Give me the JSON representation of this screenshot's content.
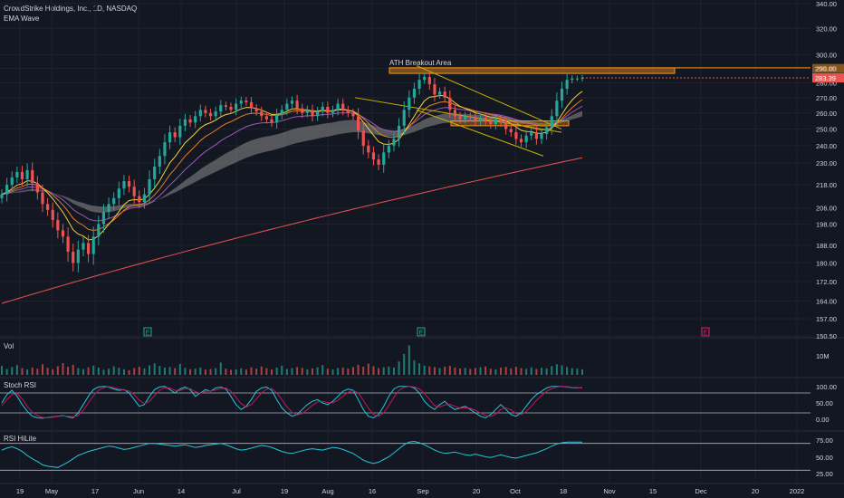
{
  "header": {
    "symbol_line": "CrowdStrike Holdings, Inc., 1D, NASDAQ",
    "indicator": "EMA Wave"
  },
  "colors": {
    "background": "#131722",
    "grid": "#1e222d",
    "up": "#26a69a",
    "down": "#ef5350",
    "text": "#d1d4dc",
    "resistance": "#f7931a",
    "trendline": "#c8b400",
    "ema_fast": "#f4d03f",
    "ema_mid": "#e67e22",
    "ema_slow": "#9b59b6",
    "ema_long": "#ef5350",
    "band": "#8c8c8c",
    "rsi_line": "#26c6da",
    "stoch_k": "#26c6da",
    "stoch_d": "#c2185b",
    "earnings_green": "#26a69a",
    "earnings_pink": "#e91e63"
  },
  "chart_data": [
    {
      "type": "candlestick",
      "title": "CrowdStrike Holdings, Inc., 1D, NASDAQ",
      "indicator": "EMA Wave",
      "x_ticks": [
        "19",
        "May",
        "17",
        "Jun",
        "14",
        "Jul",
        "19",
        "Aug",
        "16",
        "Sep",
        "20",
        "Oct",
        "18",
        "Nov",
        "15",
        "Dec",
        "20",
        "2022"
      ],
      "y_ticks": [
        340.0,
        320.0,
        300.0,
        290.0,
        280.0,
        270.0,
        260.0,
        250.0,
        240.0,
        230.0,
        218.0,
        206.0,
        198.0,
        188.0,
        180.0,
        172.0,
        164.0,
        157.0,
        150.5
      ],
      "y_scale": "log",
      "ylim": [
        150.5,
        340
      ],
      "current_price": "283.39",
      "price_badge": "290.00",
      "annotations": [
        {
          "text": "ATH Breakout Area",
          "type": "resistance-box",
          "y_range": [
            286.5,
            290.5
          ]
        },
        {
          "type": "support-box",
          "y_range": [
            252,
            255
          ]
        }
      ],
      "earnings_markers": [
        {
          "label": "E",
          "date": "Jun 2",
          "style": "past"
        },
        {
          "label": "E",
          "date": "Aug 31",
          "style": "past"
        },
        {
          "label": "E",
          "date": "Nov 30",
          "style": "upcoming"
        }
      ],
      "close_series": [
        213,
        218,
        222,
        225,
        221,
        226,
        219,
        214,
        208,
        205,
        200,
        195,
        192,
        185,
        180,
        186,
        189,
        184,
        192,
        198,
        204,
        208,
        211,
        216,
        220,
        217,
        212,
        209,
        213,
        221,
        228,
        234,
        242,
        248,
        245,
        252,
        256,
        254,
        258,
        262,
        260,
        258,
        261,
        265,
        264,
        262,
        266,
        268,
        267,
        263,
        261,
        258,
        256,
        254,
        259,
        262,
        266,
        268,
        263,
        260,
        262,
        258,
        261,
        264,
        260,
        262,
        266,
        262,
        260,
        258,
        249,
        240,
        236,
        232,
        229,
        236,
        240,
        244,
        252,
        262,
        270,
        276,
        282,
        284,
        279,
        272,
        274,
        270,
        262,
        258,
        256,
        258,
        257,
        255,
        257,
        255,
        253,
        256,
        254,
        250,
        248,
        244,
        242,
        246,
        248,
        244,
        247,
        251,
        258,
        268,
        276,
        282,
        283,
        283,
        283.39
      ]
    },
    {
      "type": "bar",
      "title": "Vol",
      "y_ticks": [
        "10M"
      ],
      "values": [
        3.2,
        2.1,
        2.8,
        3.5,
        2.4,
        1.9,
        2.6,
        2.2,
        3.8,
        2.5,
        2.0,
        3.1,
        4.2,
        2.9,
        3.6,
        2.4,
        2.1,
        2.7,
        3.3,
        2.6,
        1.8,
        2.2,
        3.0,
        2.5,
        2.0,
        1.7,
        2.4,
        2.9,
        2.3,
        3.4,
        4.1,
        3.2,
        2.6,
        2.8,
        2.4,
        3.9,
        2.5,
        2.0,
        2.2,
        2.6,
        1.9,
        2.1,
        2.4,
        4.4,
        2.2,
        1.8,
        2.0,
        2.3,
        1.9,
        2.7,
        2.2,
        3.0,
        2.4,
        1.9,
        2.6,
        3.3,
        2.1,
        2.4,
        2.8,
        2.5,
        2.0,
        2.3,
        2.7,
        3.5,
        2.2,
        1.9,
        2.4,
        2.6,
        2.2,
        2.8,
        3.6,
        2.9,
        4.0,
        3.1,
        2.4,
        2.7,
        3.0,
        2.6,
        4.8,
        7.5,
        10.5,
        5.2,
        4.1,
        3.3,
        3.0,
        2.8,
        2.4,
        2.9,
        3.2,
        2.6,
        2.3,
        2.5,
        2.1,
        2.4,
        2.7,
        3.0,
        2.2,
        2.0,
        2.6,
        2.8,
        2.3,
        2.9,
        2.4,
        2.2,
        2.7,
        2.1,
        2.5,
        2.3,
        3.1,
        3.8,
        3.4,
        2.8,
        2.4,
        2.2,
        2.0
      ]
    },
    {
      "type": "line",
      "title": "Stoch RSI",
      "y_ticks": [
        "100.00",
        "50.00",
        "0.00"
      ],
      "ylim": [
        -10,
        110
      ],
      "series": [
        {
          "values": [
            50,
            75,
            88,
            70,
            45,
            25,
            10,
            5,
            4,
            6,
            8,
            10,
            12,
            8,
            5,
            20,
            45,
            70,
            90,
            98,
            100,
            98,
            92,
            88,
            90,
            80,
            60,
            40,
            45,
            70,
            90,
            98,
            100,
            90,
            80,
            92,
            98,
            90,
            70,
            80,
            90,
            85,
            95,
            98,
            92,
            70,
            45,
            30,
            40,
            60,
            85,
            95,
            98,
            88,
            60,
            35,
            20,
            10,
            15,
            30,
            45,
            55,
            60,
            50,
            45,
            55,
            70,
            85,
            92,
            88,
            60,
            30,
            10,
            5,
            15,
            40,
            70,
            92,
            100,
            100,
            100,
            95,
            80,
            55,
            40,
            30,
            45,
            55,
            40,
            30,
            35,
            40,
            30,
            20,
            10,
            5,
            15,
            30,
            45,
            30,
            15,
            10,
            20,
            40,
            60,
            75,
            85,
            95,
            100,
            100,
            100,
            98,
            96,
            95,
            96
          ]
        },
        {
          "values": [
            42,
            60,
            75,
            78,
            62,
            40,
            22,
            12,
            6,
            5,
            7,
            9,
            11,
            10,
            8,
            12,
            28,
            50,
            72,
            88,
            96,
            99,
            96,
            92,
            89,
            86,
            75,
            58,
            48,
            55,
            72,
            88,
            96,
            95,
            88,
            87,
            93,
            93,
            84,
            79,
            85,
            86,
            89,
            93,
            95,
            85,
            67,
            48,
            38,
            45,
            62,
            80,
            92,
            93,
            80,
            60,
            38,
            22,
            14,
            18,
            30,
            43,
            53,
            55,
            51,
            50,
            58,
            70,
            82,
            88,
            80,
            58,
            34,
            15,
            10,
            20,
            42,
            67,
            88,
            97,
            100,
            98,
            92,
            78,
            60,
            42,
            38,
            44,
            46,
            40,
            34,
            35,
            34,
            28,
            20,
            12,
            9,
            16,
            30,
            35,
            29,
            18,
            15,
            24,
            40,
            58,
            72,
            85,
            93,
            98,
            100,
            99,
            97,
            96,
            95
          ]
        }
      ]
    },
    {
      "type": "line",
      "title": "RSI HiLite",
      "y_ticks": [
        "75.00",
        "50.00",
        "25.00"
      ],
      "ylim": [
        20,
        80
      ],
      "series": [
        {
          "values": [
            60,
            63,
            65,
            62,
            58,
            52,
            47,
            43,
            38,
            36,
            35,
            34,
            38,
            42,
            47,
            52,
            55,
            58,
            60,
            62,
            64,
            66,
            65,
            63,
            61,
            62,
            64,
            66,
            68,
            70,
            70,
            69,
            68,
            67,
            66,
            67,
            68,
            66,
            64,
            65,
            67,
            68,
            69,
            70,
            68,
            65,
            62,
            60,
            61,
            63,
            65,
            67,
            66,
            64,
            61,
            58,
            56,
            55,
            57,
            59,
            61,
            62,
            61,
            60,
            62,
            64,
            63,
            61,
            58,
            55,
            50,
            45,
            42,
            40,
            42,
            46,
            50,
            56,
            62,
            68,
            72,
            73,
            71,
            68,
            64,
            60,
            57,
            55,
            56,
            57,
            55,
            53,
            52,
            54,
            52,
            50,
            49,
            51,
            53,
            51,
            49,
            48,
            50,
            52,
            54,
            56,
            59,
            62,
            66,
            69,
            71,
            72,
            72,
            72,
            72
          ]
        }
      ]
    }
  ]
}
